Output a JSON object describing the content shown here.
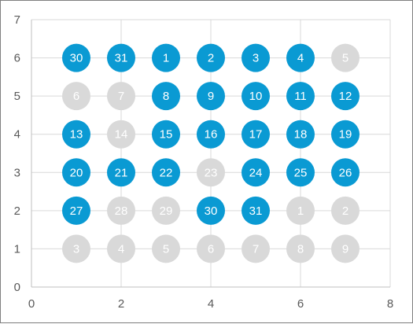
{
  "chart_data": {
    "type": "scatter",
    "title": "",
    "xlabel": "",
    "ylabel": "",
    "xlim": [
      0,
      8
    ],
    "ylim": [
      0,
      7
    ],
    "x_ticks": [
      0,
      2,
      4,
      6,
      8
    ],
    "y_ticks": [
      0,
      1,
      2,
      3,
      4,
      5,
      6,
      7
    ],
    "grid": true,
    "legend": "none",
    "colors": {
      "active": "#0a9ad3",
      "inactive": "#d9d9d9",
      "active_text": "#ffffff",
      "inactive_text": "#ffffff",
      "grid": "#d9d9d9",
      "axis": "#bfbfbf"
    },
    "points": [
      {
        "x": 1,
        "y": 6,
        "label": "30",
        "state": "active"
      },
      {
        "x": 2,
        "y": 6,
        "label": "31",
        "state": "active"
      },
      {
        "x": 3,
        "y": 6,
        "label": "1",
        "state": "active"
      },
      {
        "x": 4,
        "y": 6,
        "label": "2",
        "state": "active"
      },
      {
        "x": 5,
        "y": 6,
        "label": "3",
        "state": "active"
      },
      {
        "x": 6,
        "y": 6,
        "label": "4",
        "state": "active"
      },
      {
        "x": 7,
        "y": 6,
        "label": "5",
        "state": "inactive"
      },
      {
        "x": 1,
        "y": 5,
        "label": "6",
        "state": "inactive"
      },
      {
        "x": 2,
        "y": 5,
        "label": "7",
        "state": "inactive"
      },
      {
        "x": 3,
        "y": 5,
        "label": "8",
        "state": "active"
      },
      {
        "x": 4,
        "y": 5,
        "label": "9",
        "state": "active"
      },
      {
        "x": 5,
        "y": 5,
        "label": "10",
        "state": "active"
      },
      {
        "x": 6,
        "y": 5,
        "label": "11",
        "state": "active"
      },
      {
        "x": 7,
        "y": 5,
        "label": "12",
        "state": "active"
      },
      {
        "x": 1,
        "y": 4,
        "label": "13",
        "state": "active"
      },
      {
        "x": 2,
        "y": 4,
        "label": "14",
        "state": "inactive"
      },
      {
        "x": 3,
        "y": 4,
        "label": "15",
        "state": "active"
      },
      {
        "x": 4,
        "y": 4,
        "label": "16",
        "state": "active"
      },
      {
        "x": 5,
        "y": 4,
        "label": "17",
        "state": "active"
      },
      {
        "x": 6,
        "y": 4,
        "label": "18",
        "state": "active"
      },
      {
        "x": 7,
        "y": 4,
        "label": "19",
        "state": "active"
      },
      {
        "x": 1,
        "y": 3,
        "label": "20",
        "state": "active"
      },
      {
        "x": 2,
        "y": 3,
        "label": "21",
        "state": "active"
      },
      {
        "x": 3,
        "y": 3,
        "label": "22",
        "state": "active"
      },
      {
        "x": 4,
        "y": 3,
        "label": "23",
        "state": "inactive"
      },
      {
        "x": 5,
        "y": 3,
        "label": "24",
        "state": "active"
      },
      {
        "x": 6,
        "y": 3,
        "label": "25",
        "state": "active"
      },
      {
        "x": 7,
        "y": 3,
        "label": "26",
        "state": "active"
      },
      {
        "x": 1,
        "y": 2,
        "label": "27",
        "state": "active"
      },
      {
        "x": 2,
        "y": 2,
        "label": "28",
        "state": "inactive"
      },
      {
        "x": 3,
        "y": 2,
        "label": "29",
        "state": "inactive"
      },
      {
        "x": 4,
        "y": 2,
        "label": "30",
        "state": "active"
      },
      {
        "x": 5,
        "y": 2,
        "label": "31",
        "state": "active"
      },
      {
        "x": 6,
        "y": 2,
        "label": "1",
        "state": "inactive"
      },
      {
        "x": 7,
        "y": 2,
        "label": "2",
        "state": "inactive"
      },
      {
        "x": 1,
        "y": 1,
        "label": "3",
        "state": "inactive"
      },
      {
        "x": 2,
        "y": 1,
        "label": "4",
        "state": "inactive"
      },
      {
        "x": 3,
        "y": 1,
        "label": "5",
        "state": "inactive"
      },
      {
        "x": 4,
        "y": 1,
        "label": "6",
        "state": "inactive"
      },
      {
        "x": 5,
        "y": 1,
        "label": "7",
        "state": "inactive"
      },
      {
        "x": 6,
        "y": 1,
        "label": "8",
        "state": "inactive"
      },
      {
        "x": 7,
        "y": 1,
        "label": "9",
        "state": "inactive"
      }
    ]
  }
}
